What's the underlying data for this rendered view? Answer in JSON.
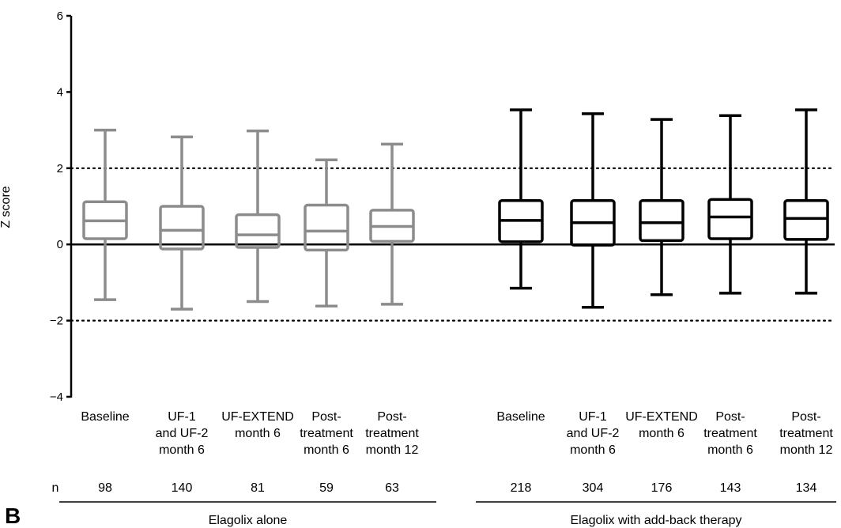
{
  "panel_letter": "B",
  "chart_data": {
    "type": "box",
    "ylabel": "Z score",
    "ylim": [
      -4,
      6
    ],
    "yticks": [
      -4,
      -2,
      0,
      2,
      4,
      6
    ],
    "ytick_labels": [
      "−4",
      "−2",
      "0",
      "2",
      "4",
      "6"
    ],
    "reference_lines": [
      {
        "y": 2,
        "style": "dotted"
      },
      {
        "y": 0,
        "style": "solid"
      },
      {
        "y": -2,
        "style": "dotted"
      }
    ],
    "n_row_label": "n",
    "groups": [
      {
        "name": "Elagolix alone",
        "color": "#8c8c8c",
        "boxes": [
          {
            "label_lines": [
              "Baseline"
            ],
            "n": "98",
            "min": -1.45,
            "q1": 0.15,
            "median": 0.62,
            "q3": 1.12,
            "max": 3.0
          },
          {
            "label_lines": [
              "UF-1",
              "and UF-2",
              "month 6"
            ],
            "n": "140",
            "min": -1.7,
            "q1": -0.12,
            "median": 0.37,
            "q3": 1.0,
            "max": 2.82
          },
          {
            "label_lines": [
              "UF-EXTEND",
              "month 6"
            ],
            "n": "81",
            "min": -1.5,
            "q1": -0.08,
            "median": 0.25,
            "q3": 0.78,
            "max": 2.98
          },
          {
            "label_lines": [
              "Post-",
              "treatment",
              "month 6"
            ],
            "n": "59",
            "min": -1.62,
            "q1": -0.15,
            "median": 0.35,
            "q3": 1.03,
            "max": 2.22
          },
          {
            "label_lines": [
              "Post-",
              "treatment",
              "month 12"
            ],
            "n": "63",
            "min": -1.57,
            "q1": 0.08,
            "median": 0.47,
            "q3": 0.9,
            "max": 2.63
          }
        ]
      },
      {
        "name": "Elagolix with add-back therapy",
        "color": "#000000",
        "boxes": [
          {
            "label_lines": [
              "Baseline"
            ],
            "n": "218",
            "min": -1.15,
            "q1": 0.07,
            "median": 0.63,
            "q3": 1.15,
            "max": 3.53
          },
          {
            "label_lines": [
              "UF-1",
              "and UF-2",
              "month 6"
            ],
            "n": "304",
            "min": -1.65,
            "q1": -0.02,
            "median": 0.57,
            "q3": 1.15,
            "max": 3.43
          },
          {
            "label_lines": [
              "UF-EXTEND",
              "month 6"
            ],
            "n": "176",
            "min": -1.32,
            "q1": 0.1,
            "median": 0.57,
            "q3": 1.15,
            "max": 3.28
          },
          {
            "label_lines": [
              "Post-",
              "treatment",
              "month 6"
            ],
            "n": "143",
            "min": -1.28,
            "q1": 0.15,
            "median": 0.72,
            "q3": 1.18,
            "max": 3.38
          },
          {
            "label_lines": [
              "Post-",
              "treatment",
              "month 12"
            ],
            "n": "134",
            "min": -1.28,
            "q1": 0.13,
            "median": 0.68,
            "q3": 1.15,
            "max": 3.53
          }
        ]
      }
    ]
  }
}
